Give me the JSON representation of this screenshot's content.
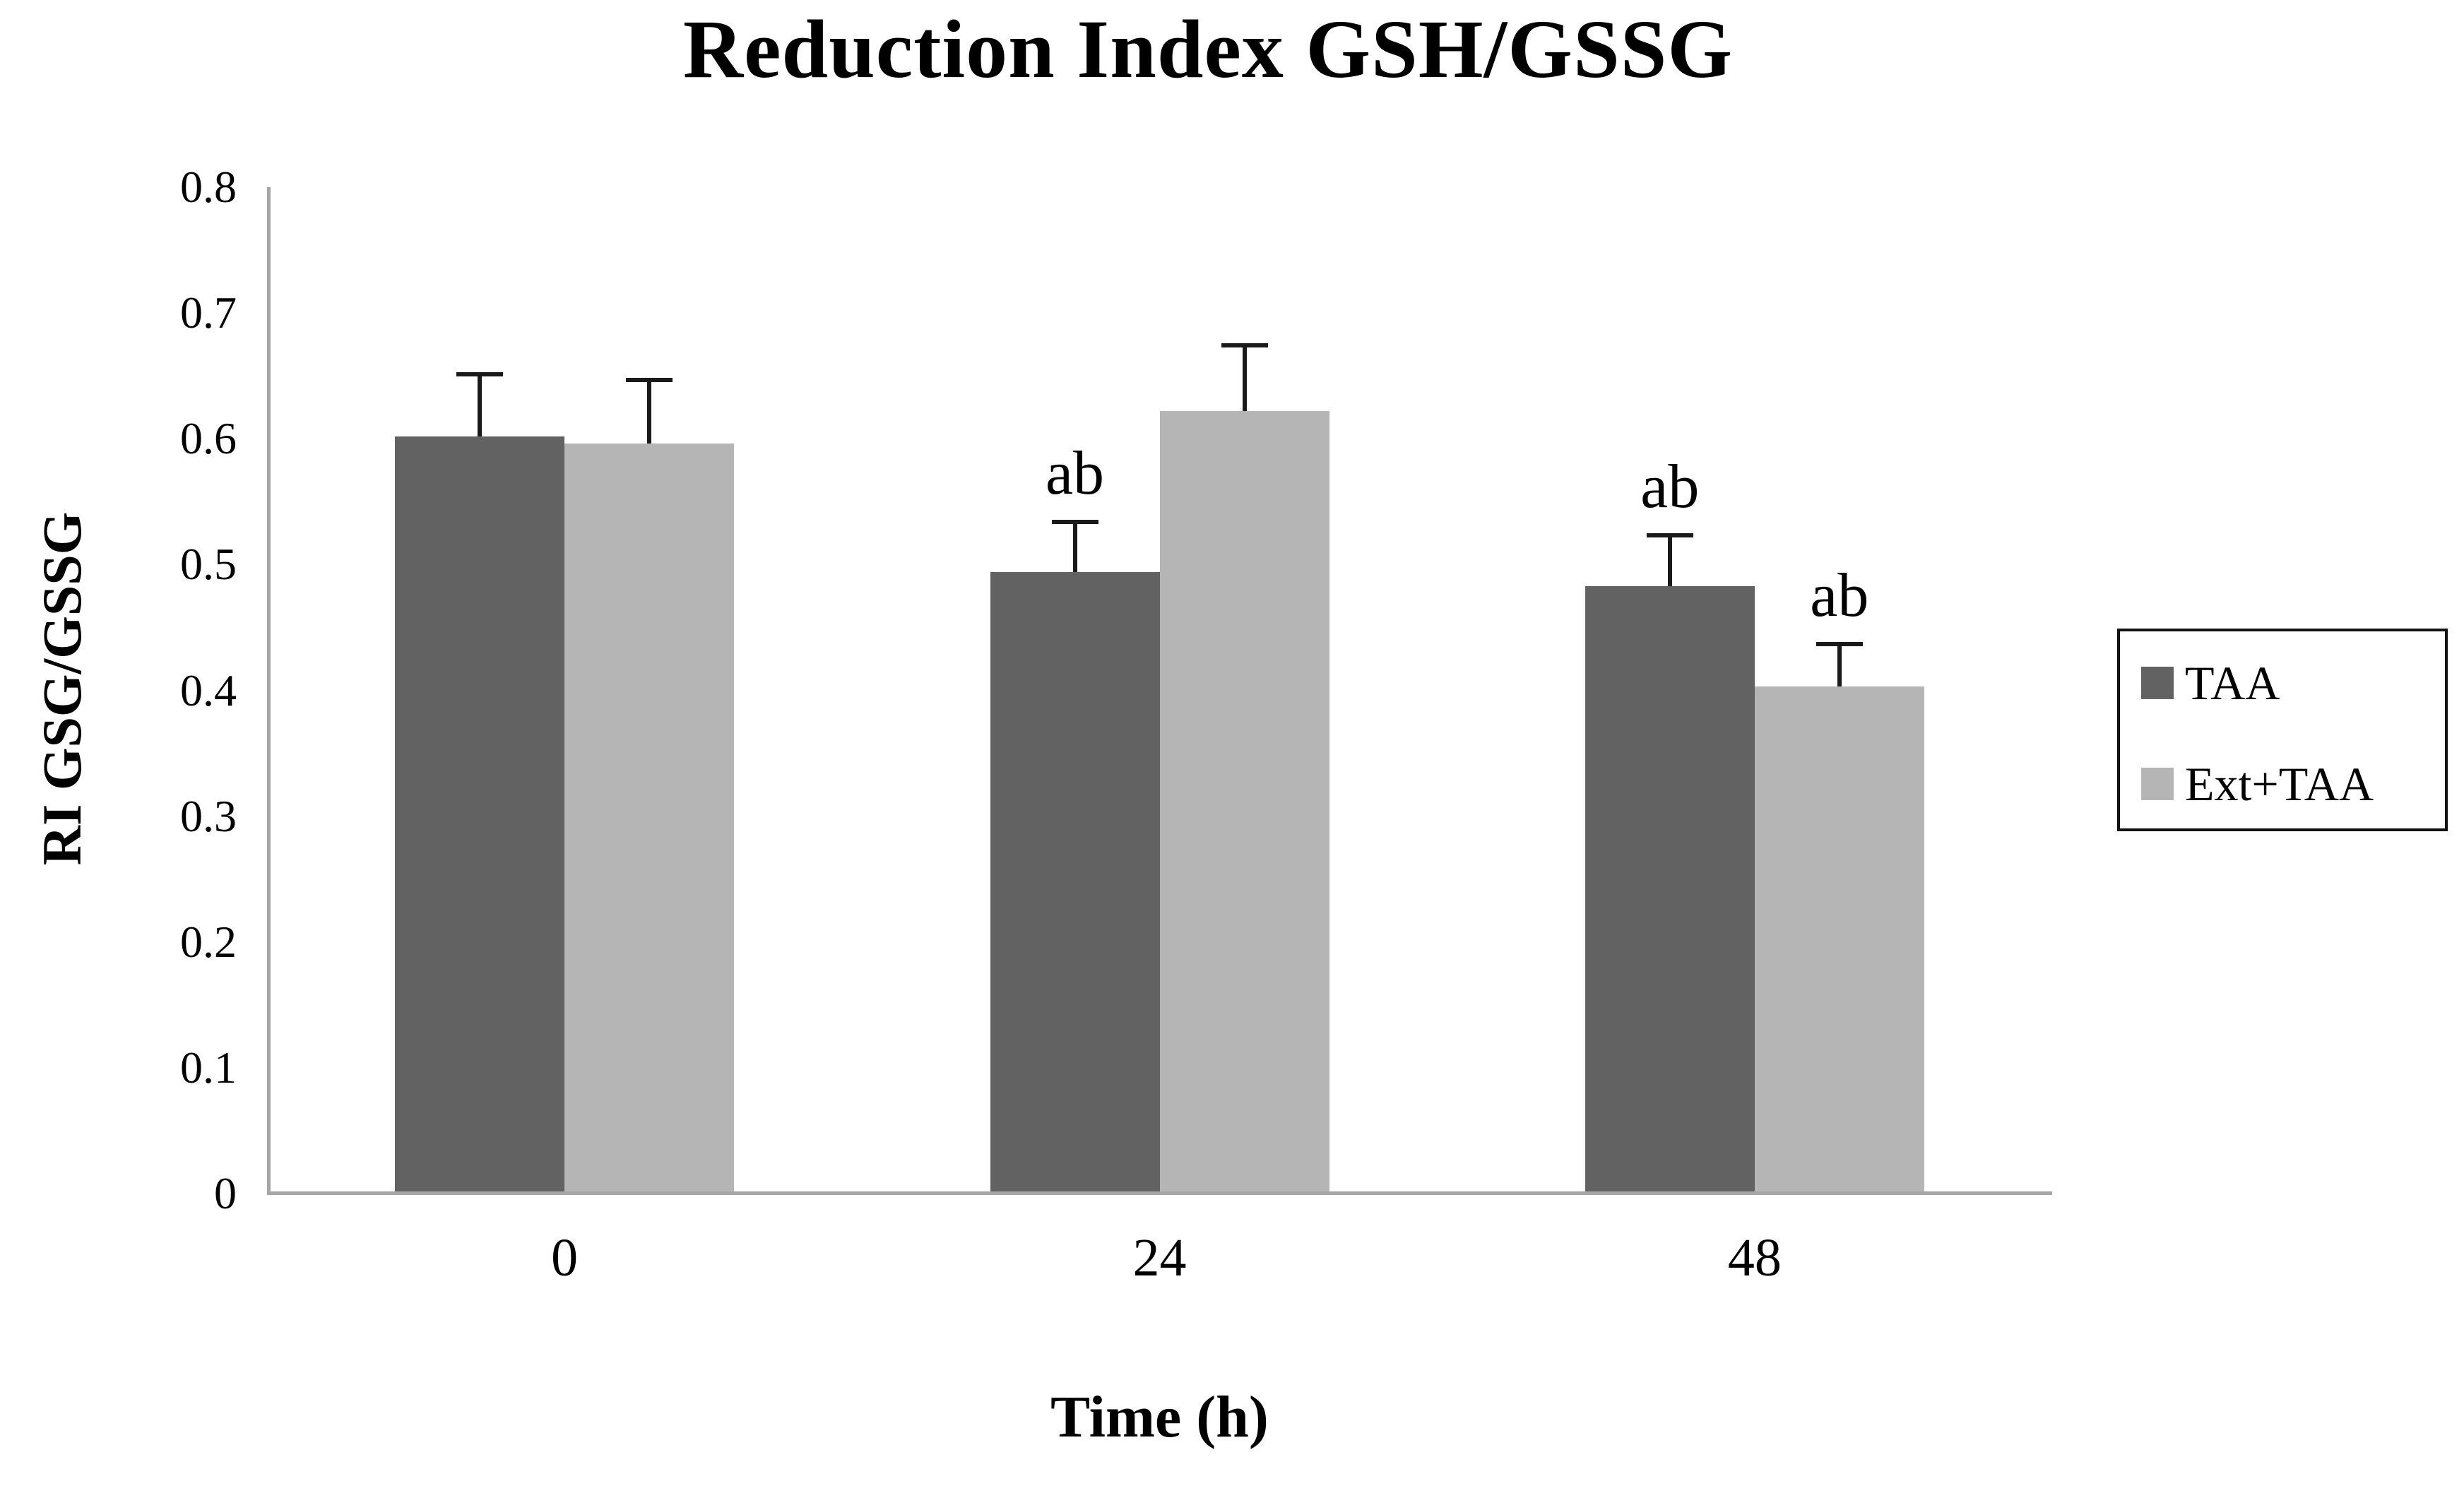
{
  "title": "Reduction Index GSH/GSSG",
  "colors": {
    "series_dark": "#626262",
    "series_light": "#b5b5b5",
    "axis_line": "#a6a6a6",
    "error_bar": "#1a1a1a",
    "text": "#000000",
    "legend_border": "#111111"
  },
  "y_axis": {
    "label": "RI GSG/GSSG",
    "tick_labels": [
      "0",
      "0.1",
      "0.2",
      "0.3",
      "0.4",
      "0.5",
      "0.6",
      "0.7",
      "0.8"
    ]
  },
  "x_axis": {
    "label": "Time (h)",
    "tick_labels": [
      "0",
      "24",
      "48"
    ]
  },
  "chart_data": {
    "type": "bar",
    "title": "Reduction Index GSH/GSSG",
    "xlabel": "Time (h)",
    "ylabel": "RI GSG/GSSG",
    "categories": [
      "0",
      "24",
      "48"
    ],
    "ylim": [
      0,
      0.8
    ],
    "y_tick_step": 0.1,
    "grid": false,
    "legend_position": "right",
    "error_bars": "upper only, capped",
    "series": [
      {
        "name": "TAA",
        "color": "#626262",
        "values": [
          0.602,
          0.494,
          0.483
        ],
        "errors": [
          0.049,
          0.04,
          0.04
        ],
        "sig_labels": [
          "",
          "ab",
          "ab"
        ]
      },
      {
        "name": "Ext+TAA",
        "color": "#b5b5b5",
        "values": [
          0.596,
          0.622,
          0.403
        ],
        "errors": [
          0.051,
          0.052,
          0.034
        ],
        "sig_labels": [
          "",
          "",
          "ab"
        ]
      }
    ]
  }
}
